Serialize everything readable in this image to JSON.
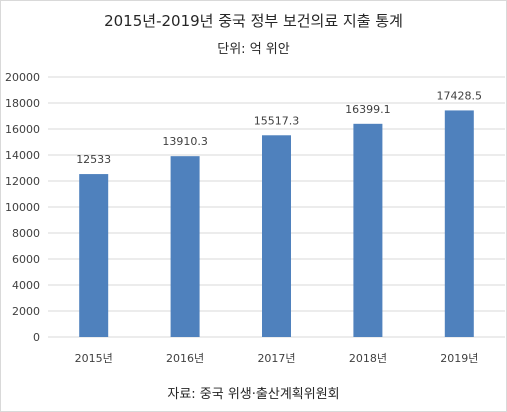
{
  "chart_data": {
    "type": "bar",
    "title": "2015년-2019년 중국 정부 보건의료 지출 통계",
    "subtitle": "단위: 억 위안",
    "source": "자료: 중국 위생·출산계획위원회",
    "categories": [
      "2015년",
      "2016년",
      "2017년",
      "2018년",
      "2019년"
    ],
    "values": [
      12533,
      13910.3,
      15517.3,
      16399.1,
      17428.5
    ],
    "value_labels": [
      "12533",
      "13910.3",
      "15517.3",
      "16399.1",
      "17428.5"
    ],
    "yticks": [
      "0",
      "2000",
      "4000",
      "6000",
      "8000",
      "10000",
      "12000",
      "14000",
      "16000",
      "18000",
      "20000"
    ],
    "ylim": [
      0,
      20000
    ],
    "grid": true,
    "bar_color": "#4f81bd"
  }
}
